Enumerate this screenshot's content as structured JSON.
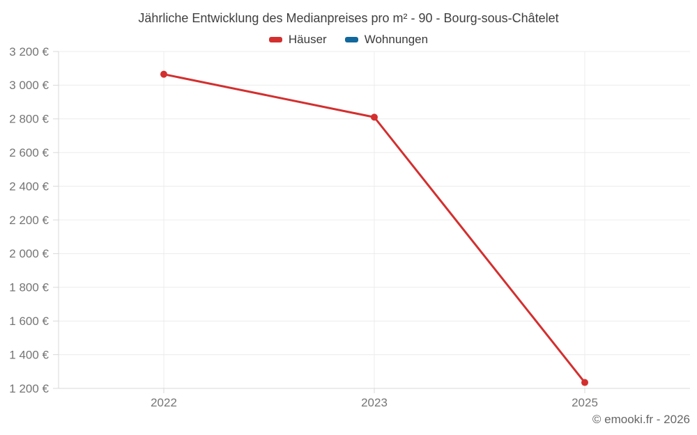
{
  "header": {
    "title": "Jährliche Entwicklung des Medianpreises pro m² - 90 - Bourg-sous-Châtelet"
  },
  "footer": {
    "attribution": "© emooki.fr - 2026"
  },
  "chart_data": {
    "type": "line",
    "title": "Jährliche Entwicklung des Medianpreises pro m² - 90 - Bourg-sous-Châtelet",
    "categories": [
      "2022",
      "2023",
      "2025"
    ],
    "series": [
      {
        "name": "Häuser",
        "color": "#d32f2f",
        "values": [
          3065,
          2810,
          1235
        ]
      },
      {
        "name": "Wohnungen",
        "color": "#12689c",
        "values": []
      }
    ],
    "xlabel": "",
    "ylabel": "",
    "ylim": [
      1200,
      3200
    ],
    "y_tick_step": 200,
    "y_ticks": [
      {
        "value": 3200,
        "label": "3 200 €"
      },
      {
        "value": 3000,
        "label": "3 000 €"
      },
      {
        "value": 2800,
        "label": "2 800 €"
      },
      {
        "value": 2600,
        "label": "2 600 €"
      },
      {
        "value": 2400,
        "label": "2 400 €"
      },
      {
        "value": 2200,
        "label": "2 200 €"
      },
      {
        "value": 2000,
        "label": "2 000 €"
      },
      {
        "value": 1800,
        "label": "1 800 €"
      },
      {
        "value": 1600,
        "label": "1 600 €"
      },
      {
        "value": 1400,
        "label": "1 400 €"
      },
      {
        "value": 1200,
        "label": "1 200 €"
      }
    ],
    "grid": true,
    "legend_position": "top",
    "marker": "circle"
  }
}
